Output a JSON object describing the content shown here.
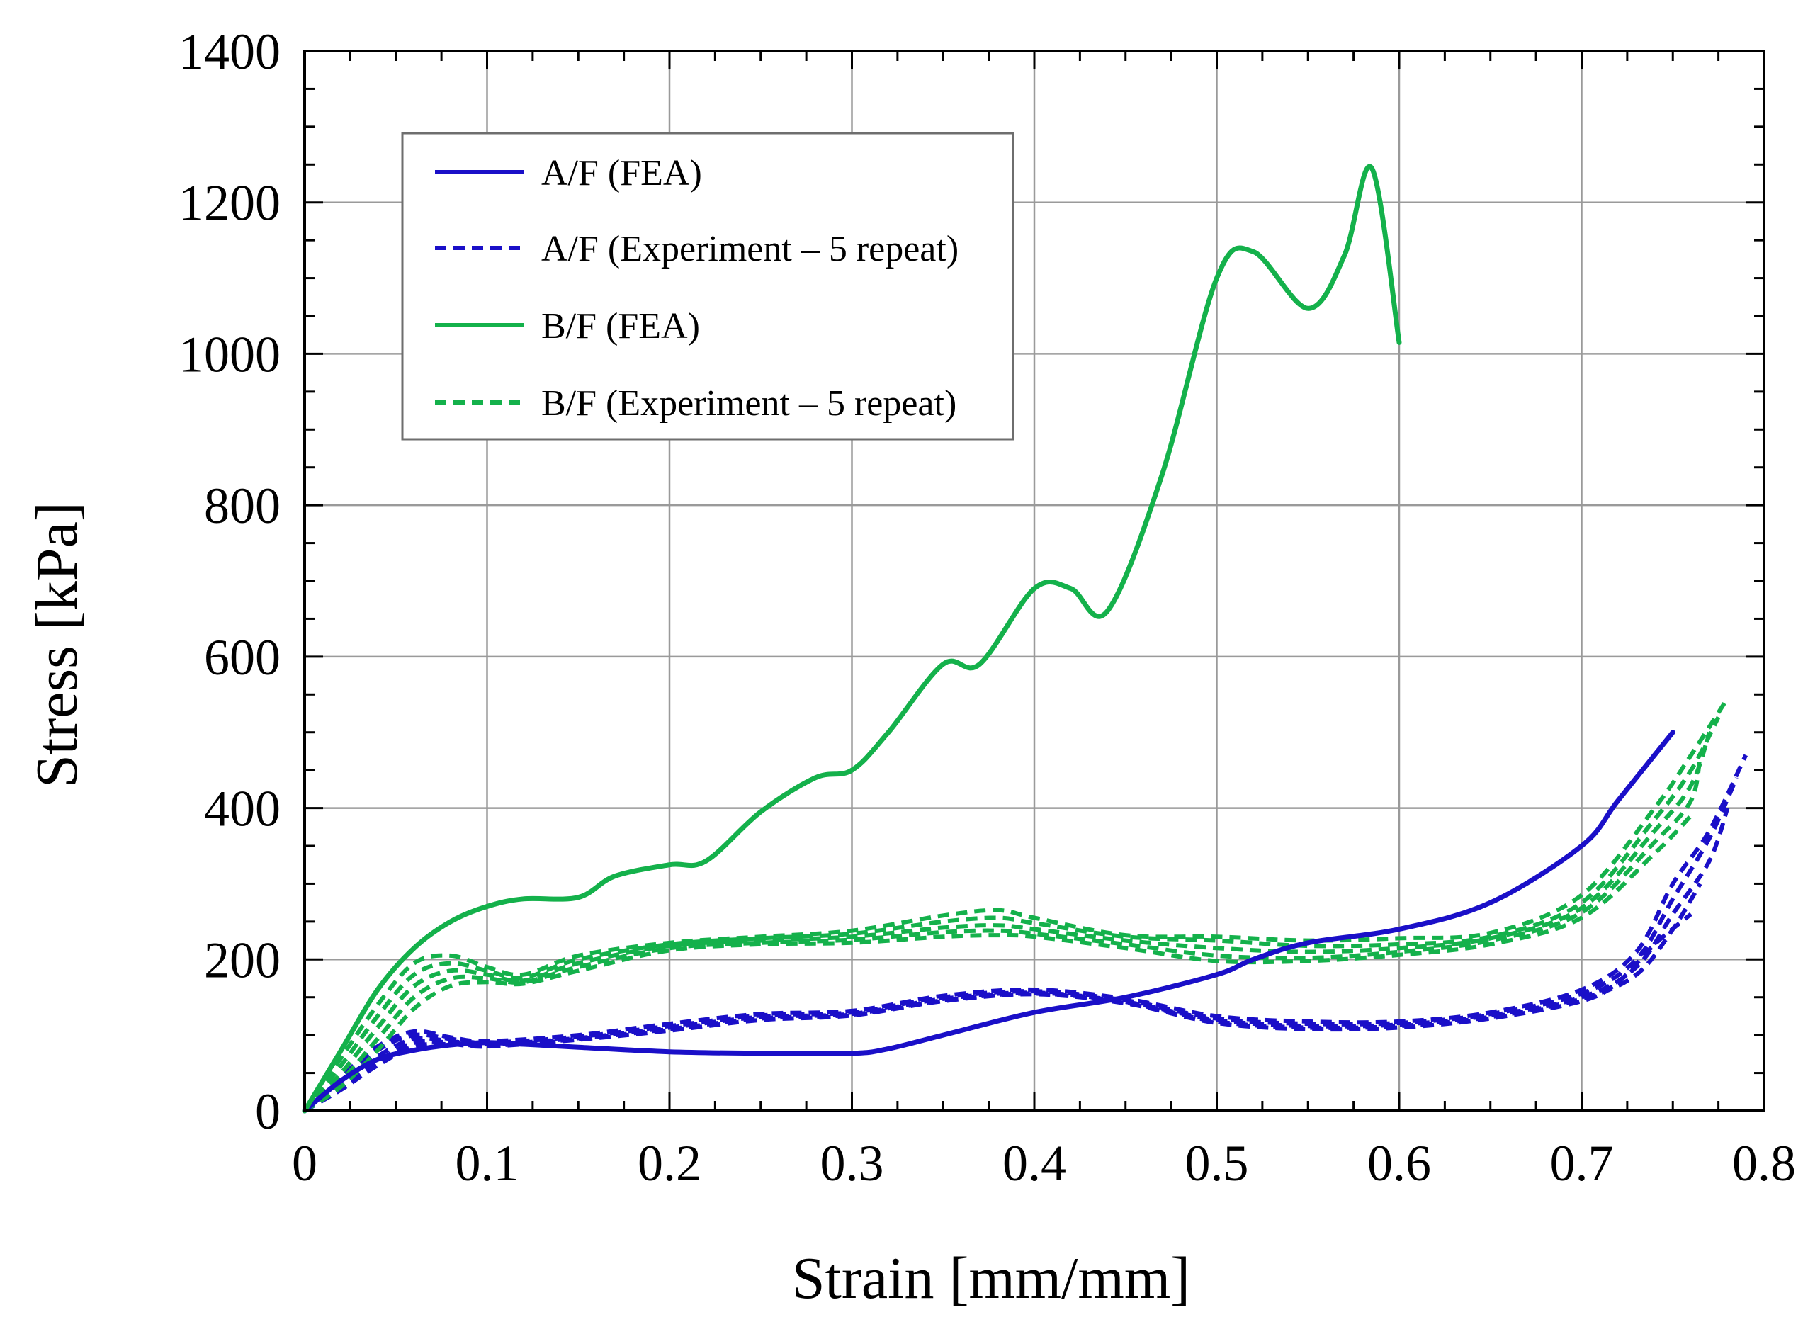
{
  "chart_data": {
    "type": "line",
    "title": "",
    "xlabel": "Strain [mm/mm]",
    "ylabel": "Stress [kPa]",
    "xlim": [
      0,
      0.8
    ],
    "ylim": [
      0,
      1400
    ],
    "xticks": [
      0,
      0.1,
      0.2,
      0.3,
      0.4,
      0.5,
      0.6,
      0.7,
      0.8
    ],
    "xtick_labels": [
      "0",
      "0.1",
      "0.2",
      "0.3",
      "0.4",
      "0.5",
      "0.6",
      "0.7",
      "0.8"
    ],
    "yticks": [
      0,
      200,
      400,
      600,
      800,
      1000,
      1200,
      1400
    ],
    "ytick_labels": [
      "0",
      "200",
      "400",
      "600",
      "800",
      "1000",
      "1200",
      "1400"
    ],
    "grid": true,
    "legend_position": "top-left",
    "colors": {
      "blue": "#1a0fc8",
      "green": "#14b14b"
    },
    "legend": [
      {
        "label": "A/F (FEA)",
        "color": "blue",
        "style": "solid"
      },
      {
        "label": "A/F (Experiment – 5 repeat)",
        "color": "blue",
        "style": "dashed"
      },
      {
        "label": "B/F (FEA)",
        "color": "green",
        "style": "solid"
      },
      {
        "label": "B/F (Experiment – 5 repeat)",
        "color": "green",
        "style": "dashed"
      }
    ],
    "series": [
      {
        "name": "A/F (FEA)",
        "color": "blue",
        "style": "solid",
        "x": [
          0,
          0.02,
          0.04,
          0.06,
          0.08,
          0.1,
          0.12,
          0.15,
          0.2,
          0.25,
          0.3,
          0.32,
          0.35,
          0.4,
          0.45,
          0.5,
          0.52,
          0.55,
          0.6,
          0.65,
          0.7,
          0.72,
          0.75
        ],
        "y": [
          0,
          40,
          68,
          80,
          87,
          90,
          88,
          84,
          78,
          76,
          76,
          82,
          100,
          130,
          150,
          180,
          200,
          222,
          240,
          275,
          350,
          410,
          500
        ]
      },
      {
        "name": "A/F (Experiment - 5 repeat) #1",
        "color": "blue",
        "style": "dashed",
        "x": [
          0,
          0.02,
          0.04,
          0.06,
          0.08,
          0.1,
          0.15,
          0.2,
          0.25,
          0.3,
          0.35,
          0.4,
          0.45,
          0.5,
          0.55,
          0.6,
          0.65,
          0.7,
          0.73,
          0.75,
          0.77,
          0.79
        ],
        "y": [
          0,
          45,
          85,
          105,
          97,
          92,
          100,
          115,
          128,
          132,
          152,
          160,
          148,
          125,
          118,
          118,
          130,
          160,
          210,
          300,
          370,
          470
        ]
      },
      {
        "name": "A/F (Experiment - 5 repeat) #2",
        "color": "blue",
        "style": "dashed",
        "x": [
          0,
          0.02,
          0.04,
          0.06,
          0.08,
          0.1,
          0.15,
          0.2,
          0.25,
          0.3,
          0.35,
          0.4,
          0.45,
          0.5,
          0.55,
          0.6,
          0.65,
          0.7,
          0.73,
          0.75,
          0.77,
          0.785
        ],
        "y": [
          0,
          40,
          80,
          100,
          95,
          90,
          98,
          112,
          126,
          130,
          150,
          158,
          146,
          122,
          115,
          116,
          128,
          155,
          200,
          280,
          360,
          440
        ]
      },
      {
        "name": "A/F (Experiment - 5 repeat) #3",
        "color": "blue",
        "style": "dashed",
        "x": [
          0,
          0.02,
          0.04,
          0.06,
          0.08,
          0.1,
          0.15,
          0.2,
          0.25,
          0.3,
          0.35,
          0.4,
          0.45,
          0.5,
          0.55,
          0.6,
          0.65,
          0.7,
          0.73,
          0.75,
          0.77,
          0.78
        ],
        "y": [
          0,
          35,
          72,
          95,
          92,
          88,
          96,
          110,
          124,
          128,
          148,
          156,
          144,
          120,
          112,
          114,
          126,
          150,
          190,
          260,
          330,
          400
        ]
      },
      {
        "name": "A/F (Experiment - 5 repeat) #4",
        "color": "blue",
        "style": "dashed",
        "x": [
          0,
          0.02,
          0.04,
          0.06,
          0.08,
          0.1,
          0.15,
          0.2,
          0.25,
          0.3,
          0.35,
          0.4,
          0.45,
          0.5,
          0.55,
          0.6,
          0.65,
          0.7,
          0.73,
          0.75,
          0.765
        ],
        "y": [
          0,
          30,
          65,
          90,
          90,
          86,
          95,
          108,
          122,
          127,
          146,
          155,
          143,
          118,
          110,
          112,
          124,
          148,
          180,
          240,
          300
        ]
      },
      {
        "name": "A/F (Experiment - 5 repeat) #5",
        "color": "blue",
        "style": "dashed",
        "x": [
          0,
          0.02,
          0.04,
          0.06,
          0.08,
          0.1,
          0.15,
          0.2,
          0.25,
          0.3,
          0.35,
          0.4,
          0.45,
          0.5,
          0.55,
          0.6,
          0.65,
          0.7,
          0.72,
          0.74,
          0.76
        ],
        "y": [
          0,
          28,
          60,
          85,
          88,
          85,
          94,
          106,
          120,
          126,
          145,
          154,
          142,
          116,
          108,
          110,
          122,
          145,
          170,
          220,
          260
        ]
      },
      {
        "name": "B/F (FEA)",
        "color": "green",
        "style": "solid",
        "x": [
          0,
          0.02,
          0.04,
          0.06,
          0.08,
          0.1,
          0.12,
          0.15,
          0.17,
          0.2,
          0.22,
          0.25,
          0.28,
          0.3,
          0.32,
          0.35,
          0.37,
          0.4,
          0.42,
          0.44,
          0.47,
          0.5,
          0.52,
          0.55,
          0.57,
          0.585,
          0.6
        ],
        "y": [
          0,
          80,
          160,
          215,
          250,
          270,
          280,
          282,
          310,
          325,
          330,
          395,
          440,
          450,
          500,
          590,
          590,
          690,
          690,
          660,
          840,
          1100,
          1135,
          1060,
          1130,
          1245,
          1015
        ]
      },
      {
        "name": "B/F (Experiment - 5 repeat) #1",
        "color": "green",
        "style": "dashed",
        "x": [
          0,
          0.02,
          0.04,
          0.06,
          0.08,
          0.1,
          0.12,
          0.15,
          0.2,
          0.25,
          0.3,
          0.35,
          0.38,
          0.4,
          0.45,
          0.5,
          0.55,
          0.6,
          0.65,
          0.7,
          0.74,
          0.76,
          0.78
        ],
        "y": [
          0,
          70,
          140,
          195,
          205,
          190,
          180,
          205,
          222,
          230,
          238,
          258,
          265,
          255,
          232,
          230,
          225,
          228,
          235,
          285,
          400,
          470,
          545
        ]
      },
      {
        "name": "B/F (Experiment - 5 repeat) #2",
        "color": "green",
        "style": "dashed",
        "x": [
          0,
          0.02,
          0.04,
          0.06,
          0.08,
          0.1,
          0.12,
          0.15,
          0.2,
          0.25,
          0.3,
          0.35,
          0.38,
          0.4,
          0.45,
          0.5,
          0.55,
          0.6,
          0.65,
          0.7,
          0.74,
          0.76,
          0.775
        ],
        "y": [
          0,
          60,
          125,
          180,
          195,
          185,
          176,
          200,
          220,
          228,
          234,
          250,
          255,
          248,
          230,
          225,
          218,
          220,
          230,
          275,
          385,
          450,
          520
        ]
      },
      {
        "name": "B/F (Experiment - 5 repeat) #3",
        "color": "green",
        "style": "dashed",
        "x": [
          0,
          0.02,
          0.04,
          0.06,
          0.08,
          0.1,
          0.12,
          0.15,
          0.2,
          0.25,
          0.3,
          0.35,
          0.38,
          0.4,
          0.45,
          0.5,
          0.55,
          0.6,
          0.65,
          0.7,
          0.74,
          0.76,
          0.77
        ],
        "y": [
          0,
          50,
          110,
          165,
          185,
          180,
          172,
          195,
          218,
          225,
          230,
          242,
          245,
          240,
          225,
          215,
          210,
          215,
          228,
          268,
          370,
          430,
          500
        ]
      },
      {
        "name": "B/F (Experiment - 5 repeat) #4",
        "color": "green",
        "style": "dashed",
        "x": [
          0,
          0.02,
          0.04,
          0.06,
          0.08,
          0.1,
          0.12,
          0.15,
          0.2,
          0.25,
          0.3,
          0.35,
          0.38,
          0.4,
          0.45,
          0.5,
          0.55,
          0.6,
          0.65,
          0.7,
          0.74,
          0.76,
          0.765
        ],
        "y": [
          0,
          40,
          95,
          150,
          175,
          175,
          170,
          190,
          215,
          222,
          226,
          236,
          238,
          234,
          220,
          205,
          202,
          210,
          225,
          262,
          355,
          410,
          470
        ]
      },
      {
        "name": "B/F (Experiment - 5 repeat) #5",
        "color": "green",
        "style": "dashed",
        "x": [
          0,
          0.02,
          0.04,
          0.06,
          0.08,
          0.1,
          0.12,
          0.15,
          0.2,
          0.25,
          0.3,
          0.35,
          0.38,
          0.4,
          0.45,
          0.5,
          0.55,
          0.6,
          0.65,
          0.7,
          0.74,
          0.76
        ],
        "y": [
          0,
          32,
          80,
          135,
          165,
          170,
          168,
          185,
          212,
          220,
          222,
          230,
          232,
          230,
          215,
          198,
          198,
          206,
          220,
          255,
          340,
          390
        ]
      }
    ]
  }
}
